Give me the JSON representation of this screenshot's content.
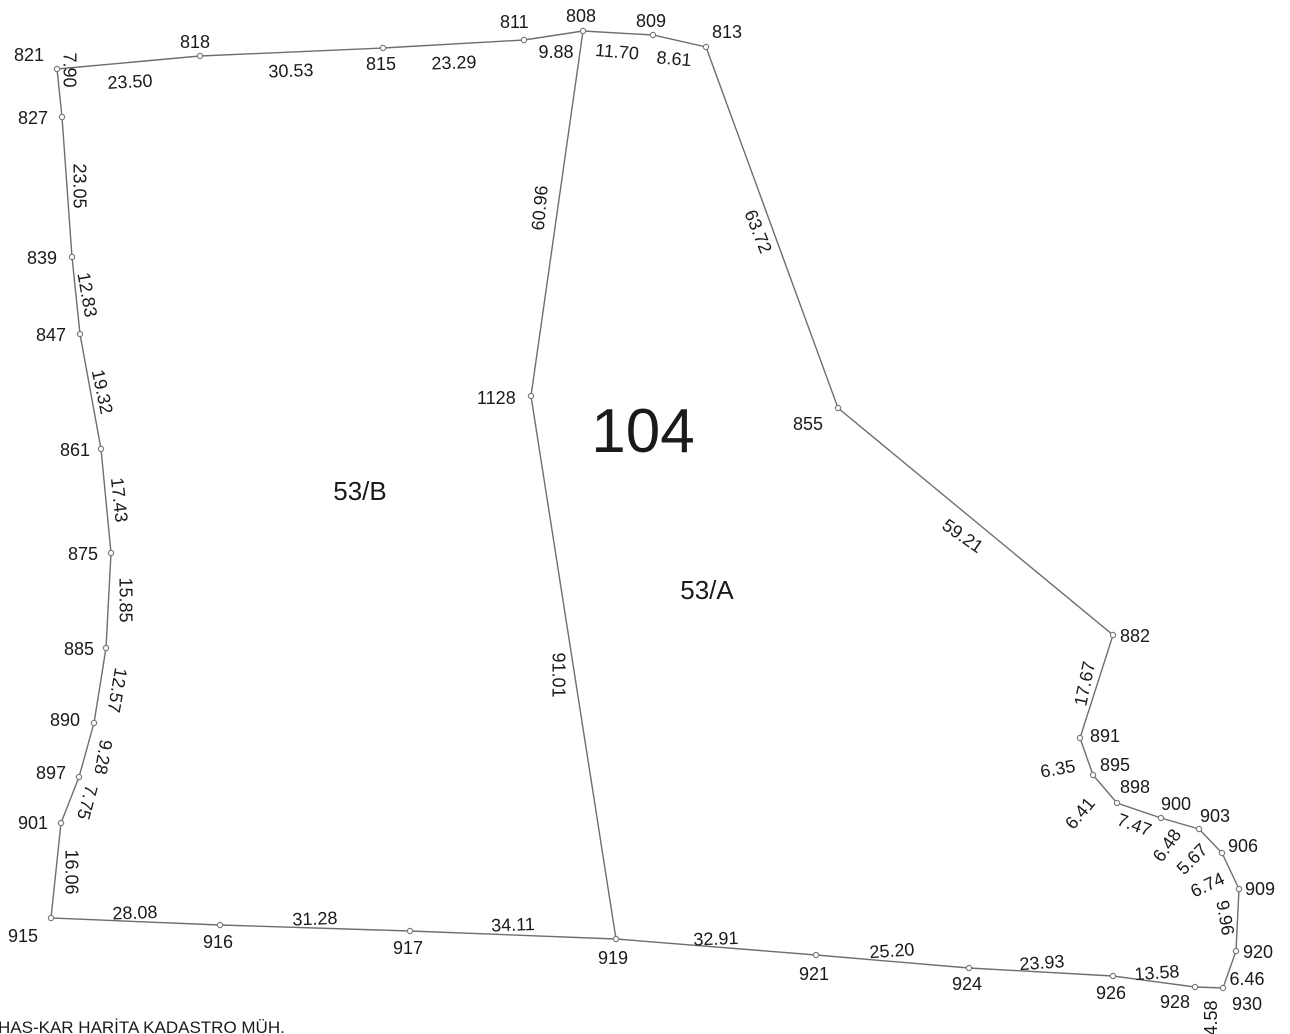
{
  "map": {
    "block_number": "104",
    "parcels": [
      {
        "key": "B",
        "label": "53/B"
      },
      {
        "key": "A",
        "label": "53/A"
      }
    ],
    "footer_text": "HAS-KAR HARİTA KADASTRO MÜH.",
    "points": [
      {
        "id": "821"
      },
      {
        "id": "827"
      },
      {
        "id": "839"
      },
      {
        "id": "847"
      },
      {
        "id": "861"
      },
      {
        "id": "875"
      },
      {
        "id": "885"
      },
      {
        "id": "890"
      },
      {
        "id": "897"
      },
      {
        "id": "901"
      },
      {
        "id": "915"
      },
      {
        "id": "916"
      },
      {
        "id": "917"
      },
      {
        "id": "919"
      },
      {
        "id": "921"
      },
      {
        "id": "924"
      },
      {
        "id": "926"
      },
      {
        "id": "928"
      },
      {
        "id": "930"
      },
      {
        "id": "920"
      },
      {
        "id": "909"
      },
      {
        "id": "906"
      },
      {
        "id": "903"
      },
      {
        "id": "900"
      },
      {
        "id": "898"
      },
      {
        "id": "895"
      },
      {
        "id": "891"
      },
      {
        "id": "882"
      },
      {
        "id": "855"
      },
      {
        "id": "813"
      },
      {
        "id": "809"
      },
      {
        "id": "808"
      },
      {
        "id": "811"
      },
      {
        "id": "815"
      },
      {
        "id": "818"
      },
      {
        "id": "1128"
      }
    ],
    "distances": [
      "7.90",
      "23.05",
      "12.83",
      "19.32",
      "17.43",
      "15.85",
      "12.57",
      "9.28",
      "7.75",
      "16.06",
      "28.08",
      "31.28",
      "34.11",
      "32.91",
      "25.20",
      "23.93",
      "13.58",
      "4.58",
      "6.46",
      "9.96",
      "6.74",
      "5.67",
      "6.48",
      "7.47",
      "6.41",
      "6.35",
      "17.67",
      "59.21",
      "63.72",
      "8.61",
      "11.70",
      "9.88",
      "23.29",
      "30.53",
      "23.50",
      "60.96",
      "91.01"
    ]
  }
}
